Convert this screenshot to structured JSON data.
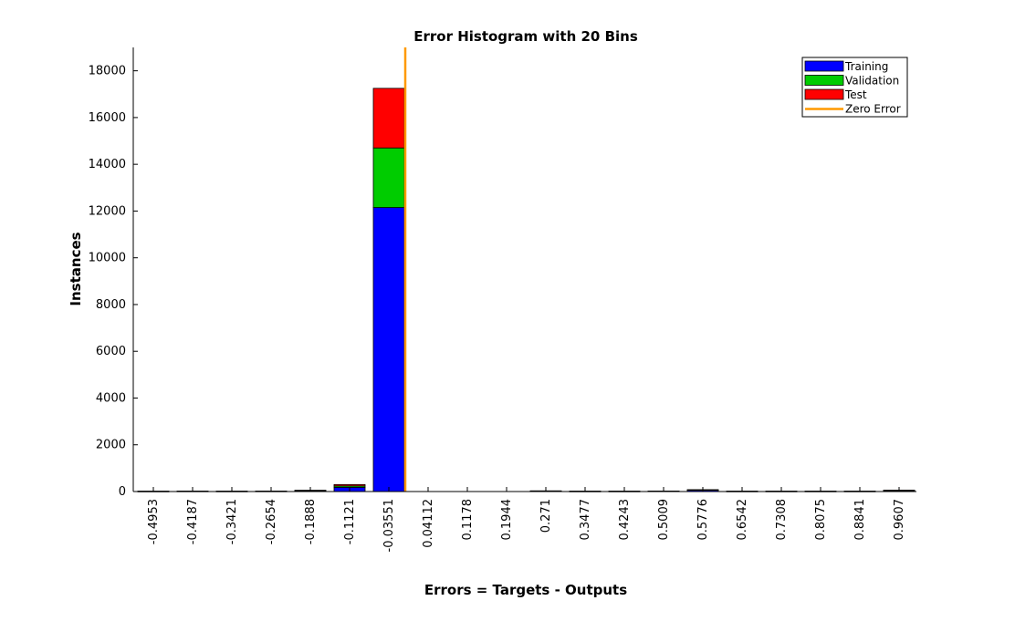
{
  "chart_data": {
    "type": "bar",
    "title": "Error Histogram with 20 Bins",
    "xlabel": "Errors = Targets - Outputs",
    "ylabel": "Instances",
    "categories": [
      "-0.4953",
      "-0.4187",
      "-0.3421",
      "-0.2654",
      "-0.1888",
      "-0.1121",
      "-0.03551",
      "0.04112",
      "0.1178",
      "0.1944",
      "0.271",
      "0.3477",
      "0.4243",
      "0.5009",
      "0.5776",
      "0.6542",
      "0.7308",
      "0.8075",
      "0.8841",
      "0.9607"
    ],
    "stacked": true,
    "series": [
      {
        "name": "Training",
        "color": "#0000ff",
        "values": [
          10,
          12,
          10,
          12,
          35,
          180,
          12150,
          0,
          0,
          0,
          20,
          10,
          10,
          15,
          60,
          10,
          10,
          10,
          10,
          40
        ]
      },
      {
        "name": "Validation",
        "color": "#00cc00",
        "values": [
          2,
          3,
          3,
          3,
          10,
          60,
          2550,
          0,
          0,
          0,
          5,
          3,
          3,
          3,
          10,
          3,
          3,
          3,
          3,
          10
        ]
      },
      {
        "name": "Test",
        "color": "#ff0000",
        "values": [
          2,
          3,
          3,
          3,
          10,
          60,
          2550,
          0,
          0,
          0,
          5,
          3,
          3,
          3,
          10,
          3,
          3,
          3,
          3,
          10
        ]
      }
    ],
    "zero_error": {
      "name": "Zero Error",
      "color": "#ff9900",
      "x_position": "-0.00"
    },
    "ylim": [
      0,
      19000
    ],
    "yticks": [
      0,
      2000,
      4000,
      6000,
      8000,
      10000,
      12000,
      14000,
      16000,
      18000
    ],
    "grid": false,
    "legend_position": "top-right"
  }
}
